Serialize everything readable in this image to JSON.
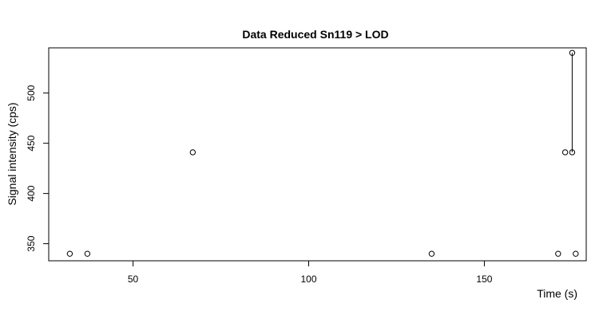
{
  "chart_data": {
    "type": "scatter",
    "title": "Data Reduced Sn119 > LOD",
    "xlabel": "Time (s)",
    "ylabel": "Signal intensity (cps)",
    "xlim": [
      26,
      179
    ],
    "ylim": [
      333,
      545
    ],
    "xticks": [
      50,
      100,
      150
    ],
    "yticks": [
      350,
      400,
      450,
      500
    ],
    "grid": false,
    "legend": "none",
    "points": [
      {
        "x": 32,
        "y": 340
      },
      {
        "x": 37,
        "y": 340
      },
      {
        "x": 67,
        "y": 441
      },
      {
        "x": 135,
        "y": 340
      },
      {
        "x": 171,
        "y": 340
      },
      {
        "x": 173,
        "y": 441
      },
      {
        "x": 175,
        "y": 441
      },
      {
        "x": 175,
        "y": 540
      },
      {
        "x": 176,
        "y": 340
      }
    ],
    "segments": [
      {
        "from": {
          "x": 175,
          "y": 540
        },
        "to": {
          "x": 175,
          "y": 441
        }
      }
    ]
  }
}
